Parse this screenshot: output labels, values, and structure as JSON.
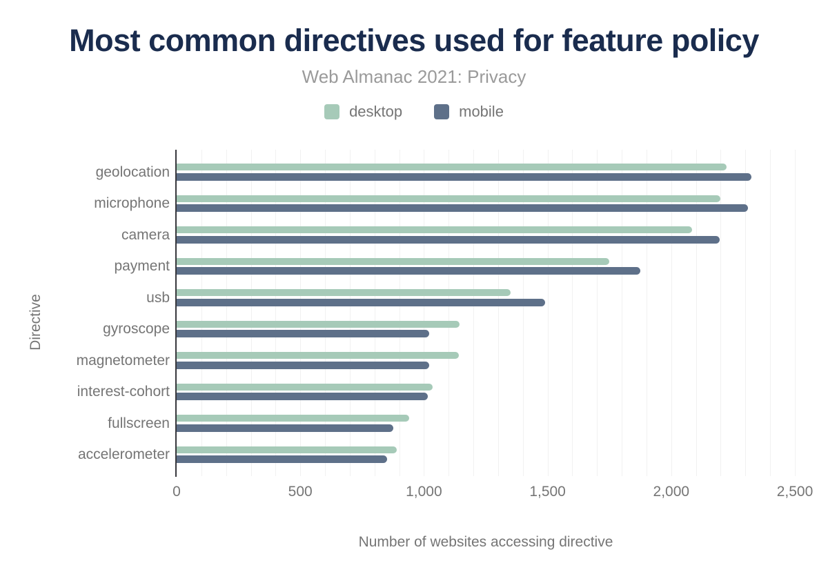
{
  "chart_data": {
    "type": "bar",
    "orientation": "horizontal",
    "title": "Most common directives used for feature policy",
    "subtitle": "Web Almanac 2021: Privacy",
    "xlabel": "Number of websites accessing directive",
    "ylabel": "Directive",
    "categories": [
      "geolocation",
      "microphone",
      "camera",
      "payment",
      "usb",
      "gyroscope",
      "magnetometer",
      "interest-cohort",
      "fullscreen",
      "accelerometer"
    ],
    "series": [
      {
        "name": "desktop",
        "color": "#a6cab8",
        "values": [
          2225,
          2200,
          2085,
          1750,
          1350,
          1145,
          1140,
          1035,
          940,
          890
        ]
      },
      {
        "name": "mobile",
        "color": "#5e7089",
        "values": [
          2325,
          2310,
          2195,
          1875,
          1490,
          1020,
          1020,
          1015,
          875,
          850
        ]
      }
    ],
    "xlim": [
      0,
      2500
    ],
    "x_ticks": [
      {
        "value": 0,
        "label": "0"
      },
      {
        "value": 500,
        "label": "500"
      },
      {
        "value": 1000,
        "label": "1,000"
      },
      {
        "value": 1500,
        "label": "1,500"
      },
      {
        "value": 2000,
        "label": "2,000"
      },
      {
        "value": 2500,
        "label": "2,500"
      }
    ],
    "grid": true,
    "grid_step": 100,
    "legend_position": "top"
  },
  "colors": {
    "title": "#1a2c4e",
    "subtitle": "#9a9a9a",
    "axis_text": "#757575",
    "axis_line": "#37373c",
    "gridline": "#f1f1f1",
    "background": "#ffffff"
  }
}
